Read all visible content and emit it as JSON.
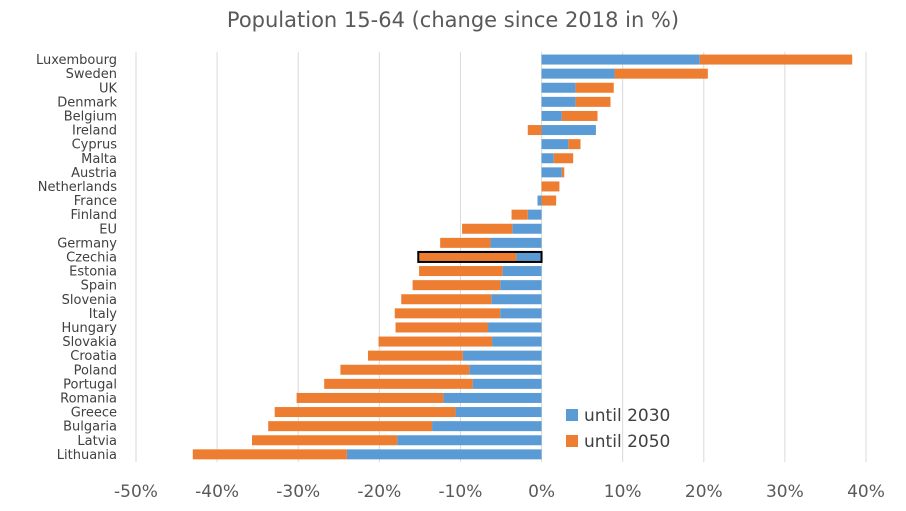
{
  "chart_data": {
    "type": "bar",
    "orientation": "horizontal",
    "stacked": true,
    "title": "Population 15-64 (change since 2018 in %)",
    "categories": [
      "Luxembourg",
      "Sweden",
      "UK",
      "Denmark",
      "Belgium",
      "Ireland",
      "Cyprus",
      "Malta",
      "Austria",
      "Netherlands",
      "France",
      "Finland",
      "EU",
      "Germany",
      "Czechia",
      "Estonia",
      "Spain",
      "Slovenia",
      "Italy",
      "Hungary",
      "Slovakia",
      "Croatia",
      "Poland",
      "Portugal",
      "Romania",
      "Greece",
      "Bulgaria",
      "Latvia",
      "Lithuania"
    ],
    "series": [
      {
        "name": "until 2030",
        "color": "#5b9bd5",
        "values": [
          19.5,
          9,
          4.2,
          4.2,
          2.5,
          6.7,
          3.3,
          1.5,
          2.5,
          0,
          -0.5,
          -1.7,
          -3.6,
          -6.3,
          -3.1,
          -4.8,
          -5.1,
          -6.2,
          -5.1,
          -6.6,
          -6.1,
          -9.7,
          -8.9,
          -8.5,
          -12.1,
          -10.6,
          -13.5,
          -17.8,
          -24.0
        ]
      },
      {
        "name": "until 2050",
        "color": "#ed7d31",
        "values": [
          18.8,
          11.5,
          4.7,
          4.3,
          4.4,
          -1.7,
          1.5,
          2.4,
          0.3,
          2.2,
          1.8,
          -2.0,
          -6.2,
          -6.2,
          -12.1,
          -10.3,
          -10.8,
          -11.1,
          -13.0,
          -11.4,
          -14.0,
          -11.7,
          -15.9,
          -18.3,
          -18.1,
          -22.3,
          -20.2,
          -17.9,
          -19.0
        ]
      }
    ],
    "highlighted_category": "Czechia",
    "xlim": [
      -50,
      40
    ],
    "xticks": [
      -50,
      -40,
      -30,
      -20,
      -10,
      0,
      10,
      20,
      30,
      40
    ],
    "xtick_labels": [
      "-50%",
      "-40%",
      "-30%",
      "-20%",
      "-10%",
      "0%",
      "10%",
      "20%",
      "30%",
      "40%"
    ],
    "grid": "vertical",
    "legend_position": "bottom-right"
  }
}
